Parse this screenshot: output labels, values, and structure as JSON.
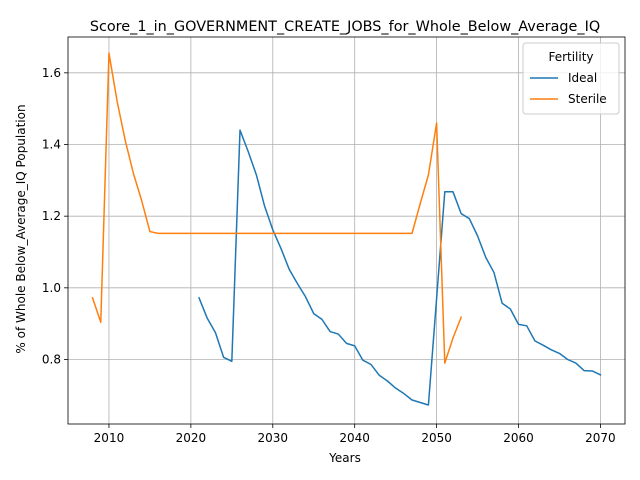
{
  "chart_data": {
    "type": "line",
    "title": "Score_1_in_GOVERNMENT_CREATE_JOBS_for_Whole_Below_Average_IQ",
    "xlabel": "Years",
    "ylabel": "% of Whole Below_Average_IQ Population",
    "xlim": [
      2005,
      2073
    ],
    "ylim": [
      0.62,
      1.7
    ],
    "xticks": [
      2010,
      2020,
      2030,
      2040,
      2050,
      2060,
      2070
    ],
    "yticks": [
      0.8,
      1.0,
      1.2,
      1.4,
      1.6
    ],
    "xtick_labels": [
      "2010",
      "2020",
      "2030",
      "2040",
      "2050",
      "2060",
      "2070"
    ],
    "ytick_labels": [
      "0.8",
      "1.0",
      "1.2",
      "1.4",
      "1.6"
    ],
    "grid": true,
    "legend": {
      "title": "Fertility",
      "placement": "top-right"
    },
    "series": [
      {
        "name": "Ideal",
        "color": "#1f77b4",
        "x": [
          2021,
          2022,
          2023,
          2024,
          2025,
          2026,
          2027,
          2028,
          2029,
          2030,
          2031,
          2032,
          2033,
          2034,
          2035,
          2036,
          2037,
          2038,
          2039,
          2040,
          2041,
          2042,
          2043,
          2044,
          2045,
          2046,
          2047,
          2048,
          2049,
          2050,
          2051,
          2052,
          2053,
          2054,
          2055,
          2056,
          2057,
          2058,
          2059,
          2060,
          2061,
          2062,
          2063,
          2064,
          2065,
          2066,
          2067,
          2068,
          2069,
          2070
        ],
        "y": [
          0.972,
          0.915,
          0.875,
          0.806,
          0.795,
          1.44,
          1.38,
          1.315,
          1.228,
          1.162,
          1.11,
          1.052,
          1.012,
          0.975,
          0.928,
          0.912,
          0.878,
          0.871,
          0.845,
          0.838,
          0.798,
          0.786,
          0.756,
          0.74,
          0.72,
          0.705,
          0.687,
          0.68,
          0.673,
          0.97,
          1.268,
          1.268,
          1.207,
          1.193,
          1.145,
          1.085,
          1.043,
          0.957,
          0.941,
          0.898,
          0.894,
          0.852,
          0.84,
          0.827,
          0.817,
          0.8,
          0.79,
          0.769,
          0.768,
          0.757
        ]
      },
      {
        "name": "Sterile",
        "color": "#ff7f0e",
        "x": [
          2008,
          2009,
          2010,
          2011,
          2012,
          2013,
          2014,
          2015,
          2016,
          2017,
          2018,
          2019,
          2020,
          2021,
          2022,
          2023,
          2024,
          2025,
          2026,
          2027,
          2028,
          2029,
          2030,
          2031,
          2032,
          2033,
          2034,
          2035,
          2036,
          2037,
          2038,
          2039,
          2040,
          2041,
          2042,
          2043,
          2044,
          2045,
          2046,
          2047,
          2048,
          2049,
          2050,
          2051,
          2052,
          2053
        ],
        "y": [
          0.972,
          0.904,
          1.655,
          1.52,
          1.41,
          1.318,
          1.243,
          1.157,
          1.152,
          1.152,
          1.152,
          1.152,
          1.152,
          1.152,
          1.152,
          1.152,
          1.152,
          1.152,
          1.152,
          1.152,
          1.152,
          1.152,
          1.152,
          1.152,
          1.152,
          1.152,
          1.152,
          1.152,
          1.152,
          1.152,
          1.152,
          1.152,
          1.152,
          1.152,
          1.152,
          1.152,
          1.152,
          1.152,
          1.152,
          1.152,
          1.235,
          1.315,
          1.46,
          0.79,
          0.86,
          0.918
        ]
      }
    ]
  }
}
